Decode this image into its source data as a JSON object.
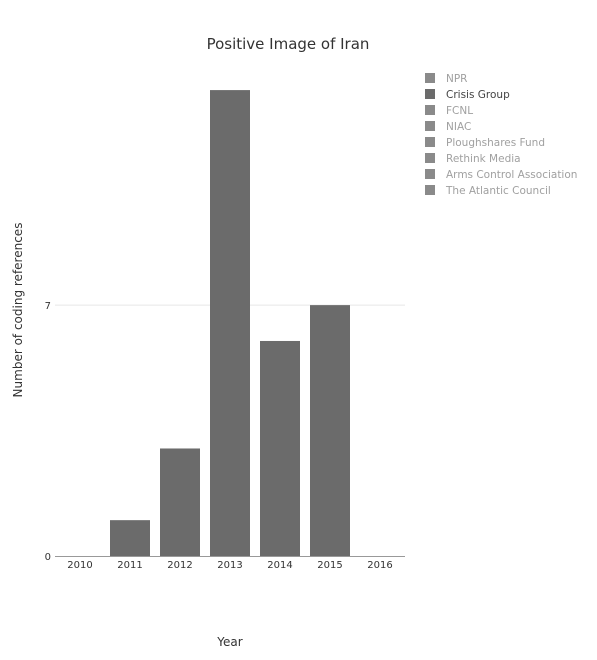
{
  "chart_data": {
    "type": "bar",
    "title": "Positive Image of Iran",
    "xlabel": "Year",
    "ylabel": "Number of coding references",
    "categories": [
      "2010",
      "2011",
      "2012",
      "2013",
      "2014",
      "2015",
      "2016"
    ],
    "series": [
      {
        "name": "Crisis Group",
        "values": [
          0,
          1,
          3,
          13,
          6,
          7,
          0
        ]
      }
    ],
    "ylim": [
      0,
      13.7
    ],
    "yticks": [
      0,
      7
    ],
    "grid": true,
    "legend_position": "top-right",
    "legend": [
      {
        "name": "NPR",
        "active": false
      },
      {
        "name": "Crisis Group",
        "active": true
      },
      {
        "name": "FCNL",
        "active": false
      },
      {
        "name": "NIAC",
        "active": false
      },
      {
        "name": "Ploughshares Fund",
        "active": false
      },
      {
        "name": "Rethink Media",
        "active": false
      },
      {
        "name": "Arms Control Association",
        "active": false
      },
      {
        "name": "The Atlantic Council",
        "active": false
      }
    ],
    "colors": {
      "bar": "#6b6b6b",
      "legend_active_swatch": "#6b6b6b",
      "legend_inactive_swatch": "#8a8a8a",
      "legend_active_text": "#444444",
      "legend_inactive_text": "#a0a0a0",
      "grid": "#e6e6e6",
      "axis": "#999999"
    }
  }
}
